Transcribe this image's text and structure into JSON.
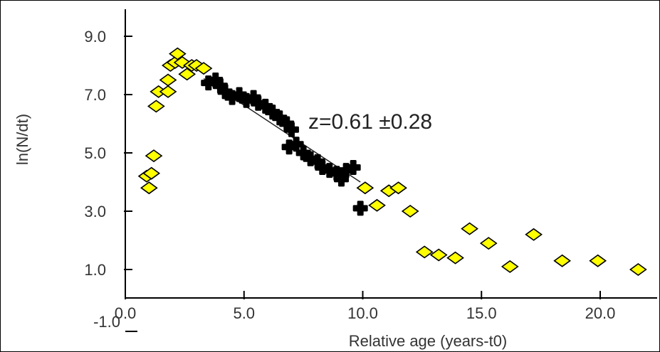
{
  "chart_data": {
    "type": "scatter",
    "title": "",
    "xlabel": "Relative age (years-t0)",
    "ylabel": "ln(N/dt)",
    "xlim": [
      0,
      22.5
    ],
    "ylim": [
      -1.0,
      10.0
    ],
    "x_ticks": [
      0,
      5,
      10,
      15,
      20
    ],
    "x_tick_labels": [
      "0.0",
      "5.0",
      "10.0",
      "15.0",
      "20.0"
    ],
    "y_ticks": [
      -1,
      1,
      3,
      5,
      7,
      9
    ],
    "y_tick_labels": [
      "-1.0",
      "1.0",
      "3.0",
      "5.0",
      "7.0",
      "9.0"
    ],
    "grid": false,
    "annotation": "z=0.61 ±0.28",
    "series": [
      {
        "marker": "diamond",
        "color": "#ffff00",
        "points": [
          [
            0.9,
            4.2
          ],
          [
            1.0,
            3.8
          ],
          [
            1.1,
            4.3
          ],
          [
            1.2,
            4.9
          ],
          [
            1.3,
            6.6
          ],
          [
            1.4,
            7.1
          ],
          [
            1.8,
            7.1
          ],
          [
            1.8,
            7.5
          ],
          [
            1.9,
            8.0
          ],
          [
            2.1,
            8.1
          ],
          [
            2.2,
            8.4
          ],
          [
            2.4,
            8.1
          ],
          [
            2.6,
            7.7
          ],
          [
            2.8,
            8.0
          ],
          [
            3.0,
            8.0
          ],
          [
            3.3,
            7.9
          ],
          [
            10.1,
            3.8
          ],
          [
            10.6,
            3.2
          ],
          [
            11.1,
            3.7
          ],
          [
            11.5,
            3.8
          ],
          [
            12.0,
            3.0
          ],
          [
            12.6,
            1.6
          ],
          [
            13.2,
            1.5
          ],
          [
            13.9,
            1.4
          ],
          [
            14.5,
            2.4
          ],
          [
            15.3,
            1.9
          ],
          [
            16.2,
            1.1
          ],
          [
            17.2,
            2.2
          ],
          [
            18.4,
            1.3
          ],
          [
            19.9,
            1.3
          ],
          [
            21.6,
            1.0
          ]
        ]
      },
      {
        "marker": "cross",
        "color": "#000000",
        "points": [
          [
            3.5,
            7.4
          ],
          [
            3.8,
            7.5
          ],
          [
            4.0,
            7.3
          ],
          [
            4.2,
            7.1
          ],
          [
            4.5,
            6.9
          ],
          [
            4.8,
            7.0
          ],
          [
            5.1,
            6.8
          ],
          [
            5.4,
            6.9
          ],
          [
            5.6,
            6.7
          ],
          [
            5.9,
            6.6
          ],
          [
            6.2,
            6.4
          ],
          [
            6.5,
            6.2
          ],
          [
            6.8,
            6.0
          ],
          [
            7.0,
            5.8
          ],
          [
            6.9,
            5.2
          ],
          [
            7.2,
            5.3
          ],
          [
            7.5,
            5.0
          ],
          [
            7.8,
            4.8
          ],
          [
            8.1,
            4.7
          ],
          [
            8.3,
            4.5
          ],
          [
            8.6,
            4.4
          ],
          [
            8.9,
            4.3
          ],
          [
            9.1,
            4.1
          ],
          [
            9.3,
            4.4
          ],
          [
            9.6,
            4.5
          ],
          [
            9.9,
            3.1
          ]
        ]
      }
    ],
    "fit_line": [
      [
        3.3,
        7.55
      ],
      [
        9.9,
        4.0
      ]
    ]
  }
}
